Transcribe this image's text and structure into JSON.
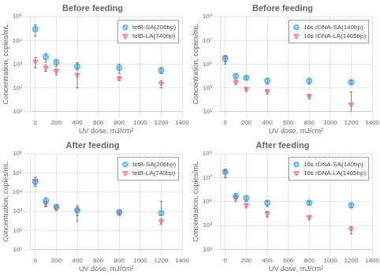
{
  "chart_data": [
    {
      "type": "scatter",
      "title": "Before feeding",
      "xlabel": "UV dose, mJ/cm²",
      "ylabel": "Concentration, copies/mL",
      "x": [
        0,
        100,
        200,
        400,
        800,
        1200
      ],
      "series": [
        {
          "name": "tetB-SA(206bp)",
          "marker": "circle",
          "values": [
            30000,
            2000,
            1200,
            800,
            700,
            550
          ],
          "yerr_lo": [
            15000,
            800,
            400,
            200,
            300,
            150
          ],
          "yerr_hi": [
            15000,
            800,
            400,
            200,
            300,
            150
          ]
        },
        {
          "name": "tetB-LA(740bp)",
          "marker": "triangle_down",
          "values": [
            1300,
            700,
            500,
            350,
            250,
            150
          ],
          "yerr_lo": [
            600,
            200,
            150,
            250,
            50,
            50
          ],
          "yerr_hi": [
            600,
            200,
            150,
            800,
            50,
            50
          ]
        }
      ],
      "xlim": [
        -50,
        1400
      ],
      "xticks": [
        0,
        200,
        400,
        600,
        800,
        1000,
        1200,
        1400
      ],
      "ylim": [
        10,
        100000
      ],
      "yticks": [
        {
          "value": 10,
          "label": "10¹"
        },
        {
          "value": 100,
          "label": "10²"
        },
        {
          "value": 1000,
          "label": "10³"
        },
        {
          "value": 10000,
          "label": "10⁴"
        },
        {
          "value": 100000,
          "label": "10⁵"
        }
      ],
      "log": "y",
      "grid": true,
      "legend": "upper right"
    },
    {
      "type": "scatter",
      "title": "Before feeding",
      "xlabel": "UV dose, mJ/cm²",
      "ylabel": "Concentration, copies/mL",
      "x": [
        0,
        100,
        200,
        400,
        800,
        1200
      ],
      "series": [
        {
          "name": "16s rDNA-SA(140bp)",
          "marker": "circle",
          "values": [
            300000,
            10000,
            7000,
            4000,
            4000,
            3000
          ],
          "yerr_lo": [
            200000,
            5000,
            2000,
            2000,
            2000,
            1000
          ],
          "yerr_hi": [
            200000,
            5000,
            2000,
            2000,
            2000,
            1000
          ]
        },
        {
          "name": "16s rDNA-LA(1465bp)",
          "marker": "triangle_down",
          "values": [
            350000,
            3000,
            800,
            500,
            200,
            40
          ],
          "yerr_lo": [
            200000,
            1000,
            300,
            200,
            80,
            30
          ],
          "yerr_hi": [
            200000,
            1000,
            300,
            200,
            80,
            400
          ]
        }
      ],
      "xlim": [
        -50,
        1400
      ],
      "xticks": [
        0,
        200,
        400,
        600,
        800,
        1000,
        1200,
        1400
      ],
      "ylim": [
        10,
        1000000000
      ],
      "yticks": [
        {
          "value": 10,
          "label": "10¹"
        },
        {
          "value": 1000,
          "label": "10³"
        },
        {
          "value": 100000,
          "label": "10⁵"
        },
        {
          "value": 10000000,
          "label": "10⁷"
        },
        {
          "value": 1000000000,
          "label": "10⁹"
        }
      ],
      "log": "y",
      "grid": true,
      "legend": "upper right"
    },
    {
      "type": "scatter",
      "title": "After feeding",
      "xlabel": "UV dose, mJ/cm²",
      "ylabel": "Concentration, copies/mL",
      "x": [
        0,
        100,
        200,
        400,
        800,
        1200
      ],
      "series": [
        {
          "name": "tetB-SA(206bp)",
          "marker": "circle",
          "values": [
            35000,
            3500,
            1700,
            1100,
            900,
            800
          ],
          "yerr_lo": [
            10000,
            1500,
            500,
            500,
            200,
            200
          ],
          "yerr_hi": [
            10000,
            1500,
            500,
            500,
            200,
            2500
          ]
        },
        {
          "name": "tetB-LA(740bp)",
          "marker": "triangle_down",
          "values": [
            40000,
            2500,
            1500,
            1100,
            800,
            300
          ],
          "yerr_lo": [
            20000,
            800,
            400,
            800,
            200,
            100
          ],
          "yerr_hi": [
            20000,
            800,
            400,
            800,
            200,
            100
          ]
        }
      ],
      "xlim": [
        -50,
        1400
      ],
      "xticks": [
        0,
        200,
        400,
        600,
        800,
        1000,
        1200,
        1400
      ],
      "ylim": [
        10,
        1000000
      ],
      "yticks": [
        {
          "value": 10,
          "label": "10¹"
        },
        {
          "value": 100,
          "label": "10²"
        },
        {
          "value": 1000,
          "label": "10³"
        },
        {
          "value": 10000,
          "label": "10⁴"
        },
        {
          "value": 100000,
          "label": "10⁵"
        },
        {
          "value": 1000000,
          "label": "10⁶"
        }
      ],
      "log": "y",
      "grid": true,
      "legend": "upper right"
    },
    {
      "type": "scatter",
      "title": "After feeding",
      "xlabel": "UV dose, mJ/cm²",
      "ylabel": "Concentration, copies/mL",
      "x": [
        0,
        100,
        200,
        400,
        800,
        1200
      ],
      "series": [
        {
          "name": "16s rDNA-SA(140bp)",
          "marker": "circle",
          "values": [
            30000000,
            300000,
            200000,
            80000,
            80000,
            50000
          ],
          "yerr_lo": [
            20000000,
            150000,
            100000,
            40000,
            30000,
            20000
          ],
          "yerr_hi": [
            20000000,
            150000,
            100000,
            40000,
            30000,
            20000
          ]
        },
        {
          "name": "16s rDNA-LA(1465bp)",
          "marker": "triangle_down",
          "values": [
            30000000,
            200000,
            50000,
            10000,
            5000,
            500
          ],
          "yerr_lo": [
            20000000,
            100000,
            20000,
            5000,
            2000,
            300
          ],
          "yerr_hi": [
            20000000,
            100000,
            20000,
            5000,
            2000,
            300
          ]
        }
      ],
      "xlim": [
        -50,
        1400
      ],
      "xticks": [
        0,
        200,
        400,
        600,
        800,
        1000,
        1200,
        1400
      ],
      "ylim": [
        10,
        1000000000
      ],
      "yticks": [
        {
          "value": 10,
          "label": "10¹"
        },
        {
          "value": 1000,
          "label": "10³"
        },
        {
          "value": 100000,
          "label": "10⁵"
        },
        {
          "value": 10000000,
          "label": "10⁷"
        },
        {
          "value": 1000000000,
          "label": "10⁹"
        }
      ],
      "log": "y",
      "grid": true,
      "legend": "upper right"
    }
  ]
}
